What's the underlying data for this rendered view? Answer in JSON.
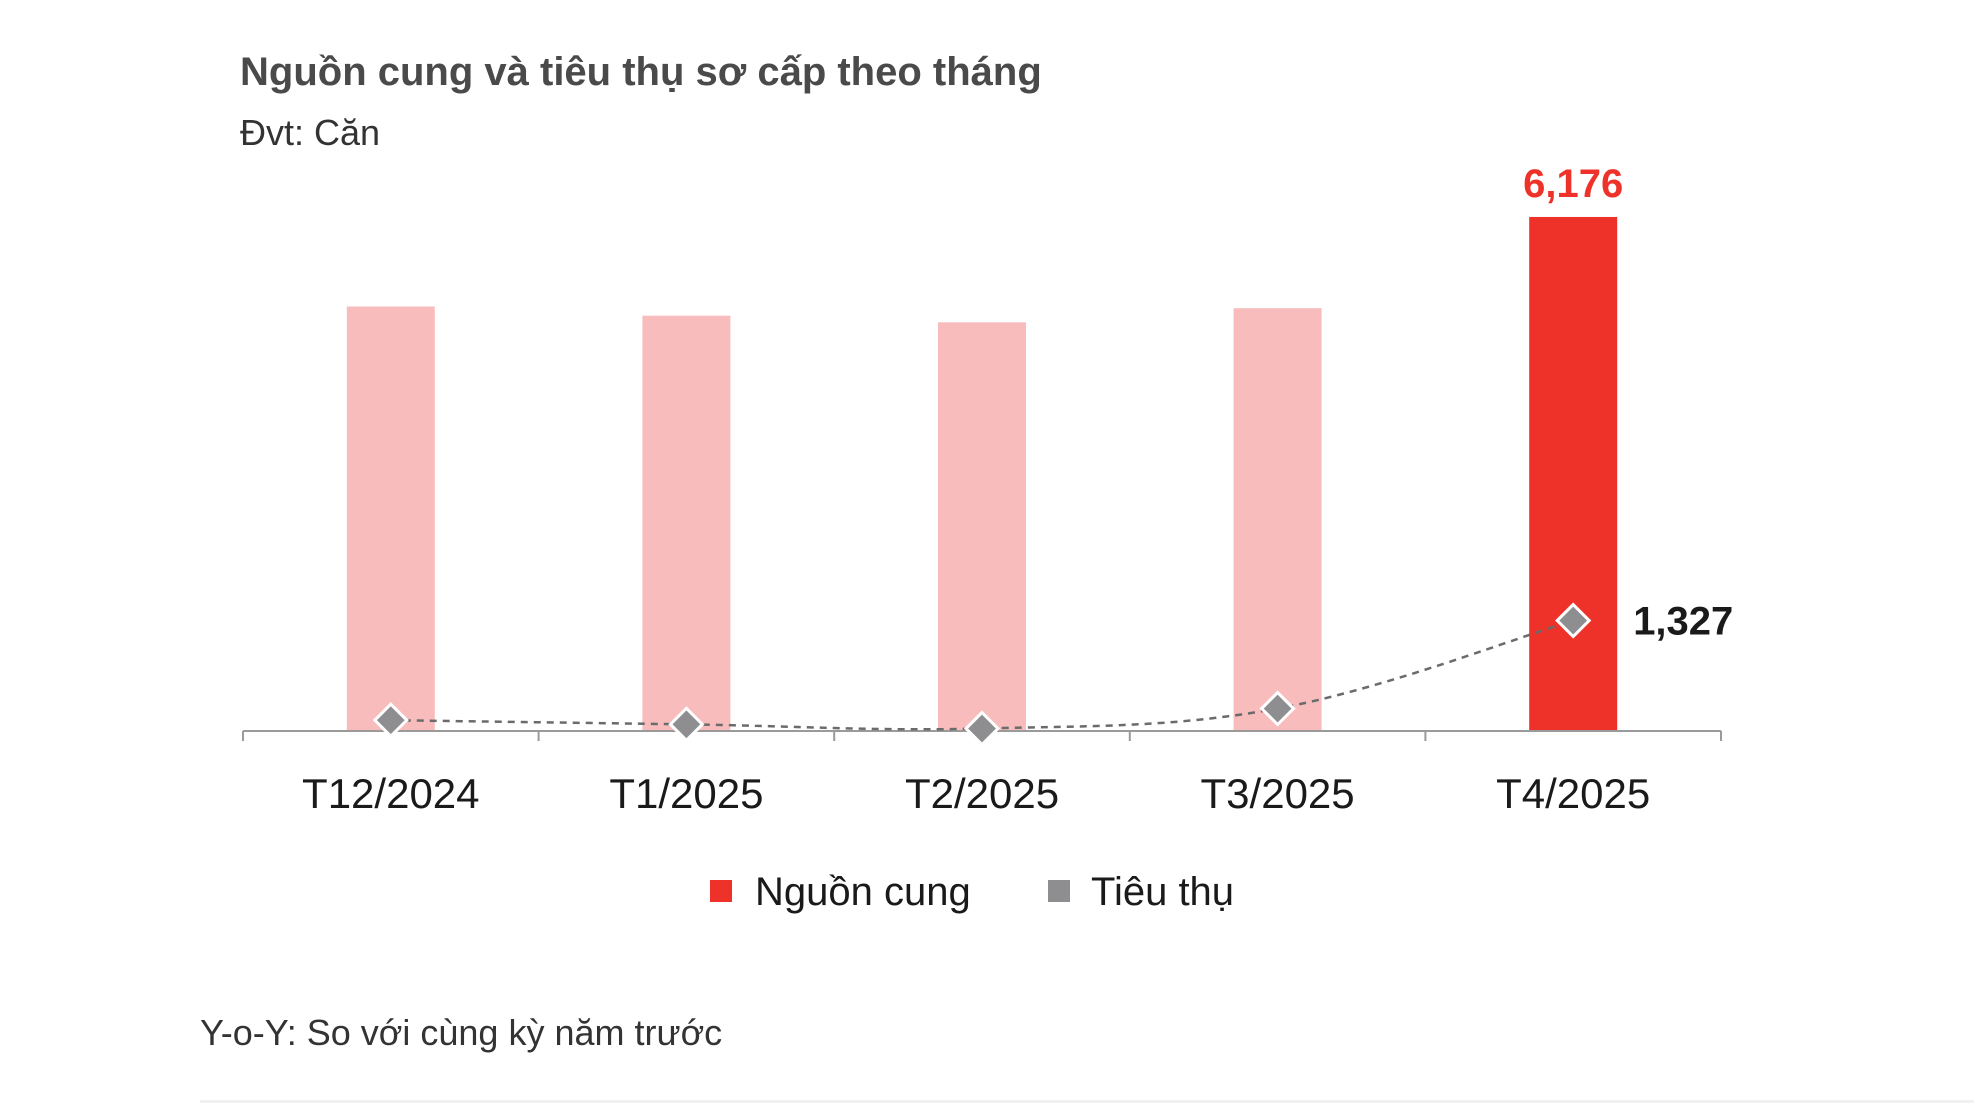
{
  "title": "Nguồn cung và tiêu thụ sơ cấp theo tháng",
  "unit_label": "Đvt: Căn",
  "footnote": "Y-o-Y: So với cùng kỳ năm trước",
  "colors": {
    "bar_light": "#f9bcbd",
    "bar_highlight": "#ee3129",
    "line": "#6b6b6b",
    "marker": "#8e8e90",
    "axis": "#9a9a9a",
    "label_highlight": "#ee3129",
    "label_dark": "#1a1a1a"
  },
  "chart_data": {
    "type": "bar",
    "categories": [
      "T12/2024",
      "T1/2025",
      "T2/2025",
      "T3/2025",
      "T4/2025"
    ],
    "series": [
      {
        "name": "Nguồn cung",
        "type": "bar",
        "values": [
          5100,
          4990,
          4910,
          5080,
          6176
        ],
        "highlight_index": 4,
        "data_labels": [
          "",
          "",
          "",
          "",
          "6,176"
        ]
      },
      {
        "name": "Tiêu thụ",
        "type": "line",
        "style": "dashed",
        "marker": "diamond",
        "values": [
          130,
          80,
          30,
          270,
          1327
        ],
        "data_labels": [
          "",
          "",
          "",
          "",
          "1,327"
        ]
      }
    ],
    "ylim": [
      0,
      6500
    ],
    "grid": false,
    "legend_position": "bottom"
  }
}
